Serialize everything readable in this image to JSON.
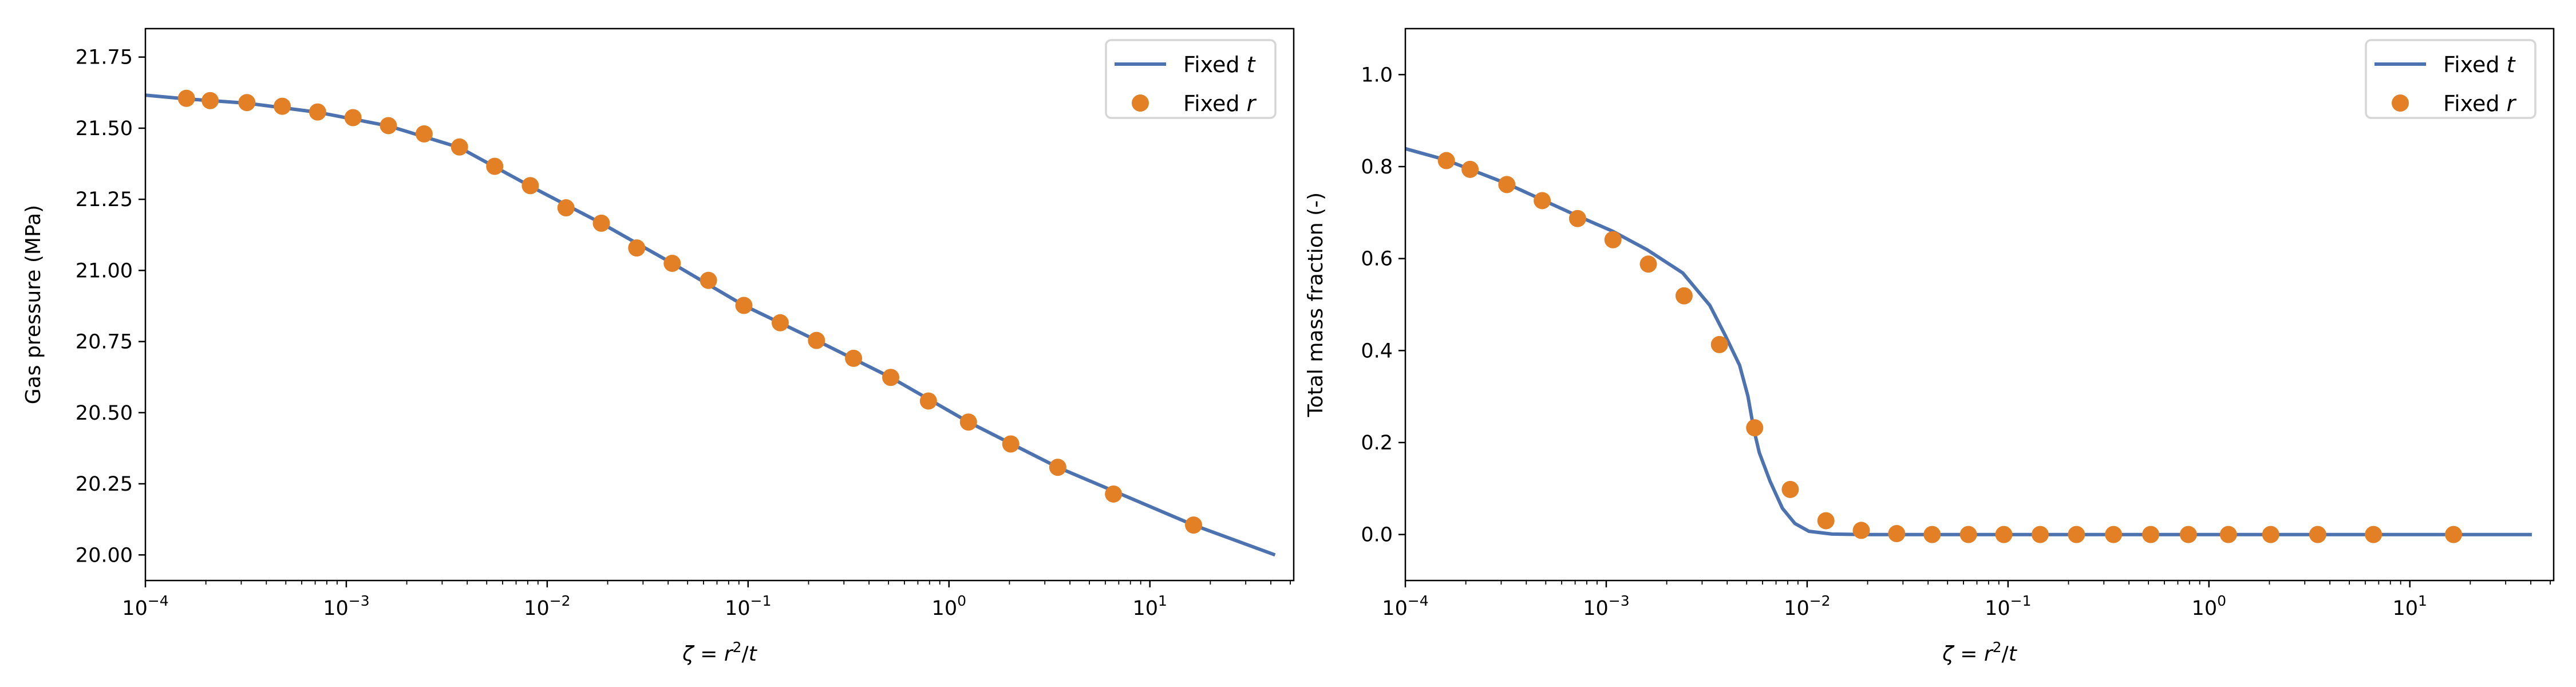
{
  "colors": {
    "fixed_t": "#4c72b0",
    "fixed_r": "#e37f25",
    "legend_edge": "#d6d6d6"
  },
  "chart_data": [
    {
      "type": "line+scatter",
      "xscale": "log",
      "xlim": [
        0.0001,
        52
      ],
      "ylim": [
        19.91,
        21.85
      ],
      "xlabel": {
        "zeta": "ζ",
        "eq": " = ",
        "r": "r",
        "sq": "2",
        "slash": "/",
        "t": "t"
      },
      "ylabel": "Gas pressure (MPa)",
      "xticks": [
        {
          "value": 0.0001,
          "base": "10",
          "exp": "−4"
        },
        {
          "value": 0.001,
          "base": "10",
          "exp": "−3"
        },
        {
          "value": 0.01,
          "base": "10",
          "exp": "−2"
        },
        {
          "value": 0.1,
          "base": "10",
          "exp": "−1"
        },
        {
          "value": 1,
          "base": "10",
          "exp": "0"
        },
        {
          "value": 10,
          "base": "10",
          "exp": "1"
        }
      ],
      "yticks": [
        {
          "value": 20.0,
          "label": "20.00"
        },
        {
          "value": 20.25,
          "label": "20.25"
        },
        {
          "value": 20.5,
          "label": "20.50"
        },
        {
          "value": 20.75,
          "label": "20.75"
        },
        {
          "value": 21.0,
          "label": "21.00"
        },
        {
          "value": 21.25,
          "label": "21.25"
        },
        {
          "value": 21.5,
          "label": "21.50"
        },
        {
          "value": 21.75,
          "label": "21.75"
        }
      ],
      "grid": false,
      "legend": {
        "placement": "top-right",
        "entries": [
          {
            "series": "fixed_t",
            "text": "Fixed ",
            "var": "t"
          },
          {
            "series": "fixed_r",
            "text": "Fixed ",
            "var": "r"
          }
        ]
      },
      "series": [
        {
          "name": "Fixed t",
          "kind": "line",
          "x": [
            0.0001,
            0.00016,
            0.00032,
            0.00072,
            0.00162,
            0.00366,
            0.00824,
            0.0186,
            0.0419,
            0.0953,
            0.219,
            0.513,
            1.25,
            3.48,
            16.5,
            42
          ],
          "y": [
            21.616,
            21.603,
            21.588,
            21.556,
            21.508,
            21.432,
            21.296,
            21.166,
            21.025,
            20.877,
            20.754,
            20.624,
            20.467,
            20.308,
            20.105,
            20.0
          ]
        },
        {
          "name": "Fixed r",
          "kind": "scatter",
          "x": [
            0.00016,
            0.00021,
            0.00032,
            0.00048,
            0.00072,
            0.00108,
            0.00162,
            0.00244,
            0.00366,
            0.00548,
            0.00824,
            0.0124,
            0.0186,
            0.0279,
            0.0419,
            0.0635,
            0.0953,
            0.1445,
            0.219,
            0.335,
            0.513,
            0.79,
            1.25,
            2.03,
            3.48,
            6.59,
            16.5
          ],
          "y": [
            21.605,
            21.597,
            21.59,
            21.577,
            21.557,
            21.537,
            21.509,
            21.48,
            21.434,
            21.366,
            21.298,
            21.22,
            21.166,
            21.079,
            21.025,
            20.965,
            20.877,
            20.816,
            20.754,
            20.691,
            20.624,
            20.541,
            20.467,
            20.39,
            20.308,
            20.214,
            20.105
          ]
        }
      ]
    },
    {
      "type": "line+scatter",
      "xscale": "log",
      "xlim": [
        0.0001,
        52
      ],
      "ylim": [
        -0.1,
        1.1
      ],
      "xlabel": {
        "zeta": "ζ",
        "eq": " = ",
        "r": "r",
        "sq": "2",
        "slash": "/",
        "t": "t"
      },
      "ylabel": "Total mass fraction (-)",
      "xticks": [
        {
          "value": 0.0001,
          "base": "10",
          "exp": "−4"
        },
        {
          "value": 0.001,
          "base": "10",
          "exp": "−3"
        },
        {
          "value": 0.01,
          "base": "10",
          "exp": "−2"
        },
        {
          "value": 0.1,
          "base": "10",
          "exp": "−1"
        },
        {
          "value": 1,
          "base": "10",
          "exp": "0"
        },
        {
          "value": 10,
          "base": "10",
          "exp": "1"
        }
      ],
      "yticks": [
        {
          "value": 0.0,
          "label": "0.0"
        },
        {
          "value": 0.2,
          "label": "0.2"
        },
        {
          "value": 0.4,
          "label": "0.4"
        },
        {
          "value": 0.6,
          "label": "0.6"
        },
        {
          "value": 0.8,
          "label": "0.8"
        },
        {
          "value": 1.0,
          "label": "1.0"
        }
      ],
      "grid": false,
      "legend": {
        "placement": "top-right",
        "entries": [
          {
            "series": "fixed_t",
            "text": "Fixed ",
            "var": "t"
          },
          {
            "series": "fixed_r",
            "text": "Fixed ",
            "var": "r"
          }
        ]
      },
      "series": [
        {
          "name": "Fixed t",
          "kind": "line",
          "x": [
            0.0001,
            0.000158,
            0.000316,
            0.00071,
            0.00107,
            0.0016,
            0.0024,
            0.00328,
            0.00389,
            0.00461,
            0.00507,
            0.00542,
            0.00578,
            0.00655,
            0.00753,
            0.00869,
            0.0102,
            0.0133,
            0.0194,
            40.5
          ],
          "y": [
            0.839,
            0.815,
            0.764,
            0.694,
            0.66,
            0.619,
            0.569,
            0.498,
            0.435,
            0.368,
            0.301,
            0.23,
            0.178,
            0.115,
            0.057,
            0.024,
            0.007,
            0.001,
            0.0,
            0.0
          ]
        },
        {
          "name": "Fixed r",
          "kind": "scatter",
          "x": [
            0.00016,
            0.00021,
            0.00032,
            0.00048,
            0.00072,
            0.00108,
            0.00162,
            0.00244,
            0.00366,
            0.00548,
            0.00824,
            0.0124,
            0.0186,
            0.0279,
            0.0419,
            0.0635,
            0.0953,
            0.1445,
            0.219,
            0.335,
            0.513,
            0.79,
            1.25,
            2.03,
            3.48,
            6.59,
            16.5
          ],
          "y": [
            0.813,
            0.794,
            0.761,
            0.726,
            0.687,
            0.641,
            0.588,
            0.519,
            0.413,
            0.232,
            0.098,
            0.03,
            0.009,
            0.002,
            0.0,
            0.0,
            0.0,
            0.0,
            0.0,
            0.0,
            0.0,
            0.0,
            0.0,
            0.0,
            0.0,
            0.0,
            0.0
          ]
        }
      ]
    }
  ]
}
